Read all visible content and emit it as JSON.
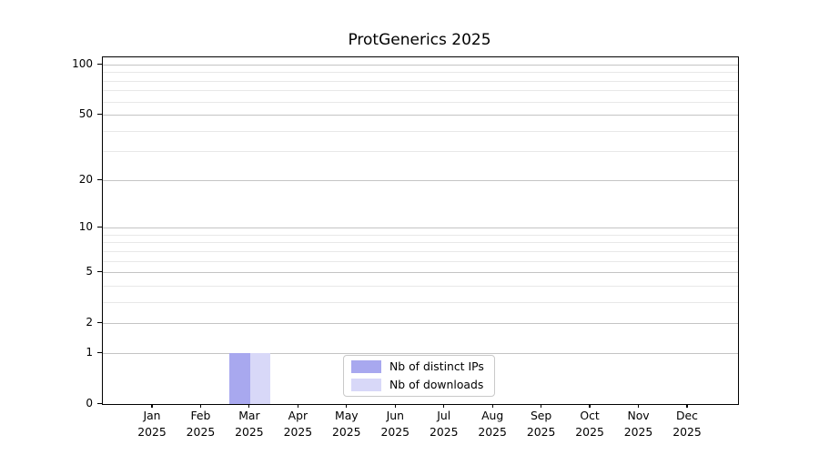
{
  "chart_data": {
    "type": "bar",
    "title": "ProtGenerics 2025",
    "categories": [
      "Jan",
      "Feb",
      "Mar",
      "Apr",
      "May",
      "Jun",
      "Jul",
      "Aug",
      "Sep",
      "Oct",
      "Nov",
      "Dec"
    ],
    "year_label": "2025",
    "series": [
      {
        "name": "Nb of distinct IPs",
        "color": "#a8a8ef",
        "values": [
          0,
          0,
          1,
          0,
          0,
          0,
          0,
          0,
          0,
          0,
          0,
          0
        ]
      },
      {
        "name": "Nb of downloads",
        "color": "#d8d8f8",
        "values": [
          0,
          0,
          1,
          0,
          0,
          0,
          0,
          0,
          0,
          0,
          0,
          0
        ]
      }
    ],
    "yscale": "log1p",
    "ylim": [
      0,
      100
    ],
    "yticks": [
      0,
      1,
      2,
      5,
      10,
      20,
      50,
      100
    ],
    "ytick_labels": [
      "0",
      "1",
      "2",
      "5",
      "10",
      "20",
      "50",
      "100"
    ],
    "yminor_ticks": [
      3,
      4,
      6,
      7,
      8,
      9,
      30,
      40,
      60,
      70,
      80,
      90
    ],
    "xlabel": "",
    "ylabel": "",
    "grid": "horizontal",
    "legend_position": "lower center",
    "colors": {
      "major_grid": "#c4c4c4",
      "minor_grid": "#e8e8e8",
      "spine": "#000000",
      "background": "#ffffff"
    }
  }
}
